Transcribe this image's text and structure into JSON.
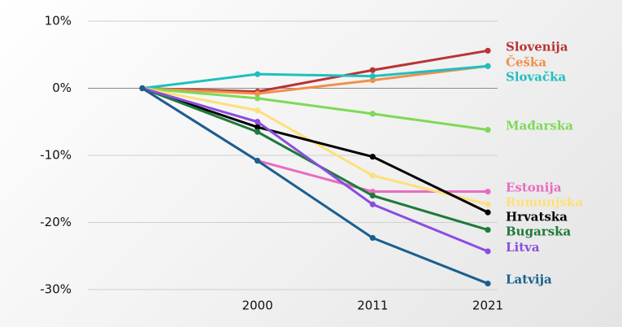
{
  "chart_data": {
    "type": "line",
    "categories": [
      null,
      "2000",
      "2011",
      "2021"
    ],
    "ylim": [
      -30,
      10
    ],
    "yticks": [
      {
        "value": 10,
        "label": "10%"
      },
      {
        "value": 0,
        "label": "0%"
      },
      {
        "value": -10,
        "label": "-10%"
      },
      {
        "value": -20,
        "label": "-20%"
      },
      {
        "value": -30,
        "label": "-30%"
      }
    ],
    "grid": true,
    "series": [
      {
        "name": "Slovenija",
        "color": "#b83434",
        "values": [
          0,
          -0.5,
          2.7,
          5.6
        ]
      },
      {
        "name": "Češka",
        "color": "#f0904a",
        "values": [
          0,
          -0.8,
          1.2,
          3.3
        ]
      },
      {
        "name": "Slovačka",
        "color": "#1fbfbf",
        "values": [
          0,
          2.1,
          1.8,
          3.3
        ]
      },
      {
        "name": "Mađarska",
        "color": "#7ed957",
        "values": [
          0,
          -1.5,
          -3.8,
          -6.2
        ]
      },
      {
        "name": "Estonija",
        "color": "#e86cc0",
        "values": [
          0,
          -10.8,
          -15.4,
          -15.4
        ]
      },
      {
        "name": "Rumunjska",
        "color": "#fde07a",
        "values": [
          0,
          -3.3,
          -13,
          -17.3
        ]
      },
      {
        "name": "Hrvatska",
        "color": "#000000",
        "values": [
          0,
          -5.8,
          -10.2,
          -18.5
        ]
      },
      {
        "name": "Bugarska",
        "color": "#1e7a3a",
        "values": [
          0,
          -6.5,
          -16,
          -21.1
        ]
      },
      {
        "name": "Litva",
        "color": "#8b4de0",
        "values": [
          0,
          -5,
          -17.3,
          -24.3
        ]
      },
      {
        "name": "Latvija",
        "color": "#1a5f8f",
        "values": [
          0,
          -10.8,
          -22.3,
          -29.1
        ]
      }
    ]
  }
}
